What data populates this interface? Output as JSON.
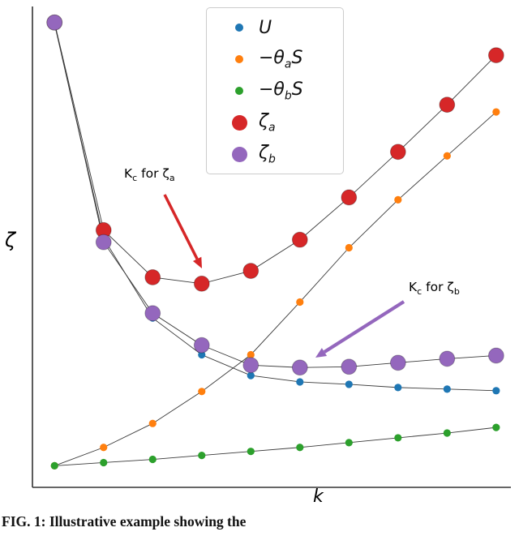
{
  "figure": {
    "caption": "FIG. 1: Illustrative example showing the",
    "background": "#ffffff"
  },
  "legend": {
    "items": [
      {
        "label": "U",
        "color": "#1f77b4",
        "size": "small"
      },
      {
        "prefix": "−θ",
        "sub": "a",
        "suffix": "S",
        "color": "#ff7f0e",
        "size": "small"
      },
      {
        "prefix": "−θ",
        "sub": "b",
        "suffix": "S",
        "color": "#2ca02c",
        "size": "small"
      },
      {
        "prefix": "ζ",
        "sub": "a",
        "color": "#d62728",
        "size": "large"
      },
      {
        "prefix": "ζ",
        "sub": "b",
        "color": "#9467bd",
        "size": "large"
      }
    ]
  },
  "annotations": {
    "a": {
      "main1": "K",
      "sub1": "c",
      "main2": " for ζ",
      "sub2": "a",
      "arrow_color": "#d62728"
    },
    "b": {
      "main1": "K",
      "sub1": "c",
      "main2": " for ζ",
      "sub2": "b",
      "arrow_color": "#9467bd"
    }
  },
  "chart_data": {
    "type": "scatter",
    "title": "",
    "xlabel": "k",
    "ylabel": "ζ",
    "x": [
      1,
      2,
      3,
      4,
      5,
      6,
      7,
      8,
      9,
      10
    ],
    "xlim": [
      0.55,
      10.3
    ],
    "ylim": [
      0,
      6
    ],
    "grid": false,
    "legend_position": "upper center",
    "line_color": "#3a3a3a",
    "axis_color": "#333333",
    "series": [
      {
        "name": "U",
        "color": "#1f77b4",
        "marker_size": "small",
        "values": [
          5.8,
          3.12,
          2.12,
          1.66,
          1.4,
          1.32,
          1.29,
          1.25,
          1.23,
          1.21
        ]
      },
      {
        "name": "−θaS",
        "color": "#ff7f0e",
        "marker_size": "small",
        "values": [
          0.27,
          0.5,
          0.8,
          1.2,
          1.66,
          2.32,
          3.0,
          3.6,
          4.15,
          4.7
        ]
      },
      {
        "name": "−θbS",
        "color": "#2ca02c",
        "marker_size": "small",
        "values": [
          0.27,
          0.31,
          0.35,
          0.4,
          0.45,
          0.5,
          0.56,
          0.62,
          0.68,
          0.75
        ]
      },
      {
        "name": "ζa",
        "color": "#d62728",
        "marker_size": "large",
        "values": [
          5.82,
          3.22,
          2.63,
          2.55,
          2.71,
          3.1,
          3.63,
          4.2,
          4.79,
          5.41
        ]
      },
      {
        "name": "ζb",
        "color": "#9467bd",
        "marker_size": "large",
        "values": [
          5.82,
          3.07,
          2.18,
          1.78,
          1.53,
          1.5,
          1.51,
          1.56,
          1.61,
          1.65
        ]
      }
    ]
  }
}
